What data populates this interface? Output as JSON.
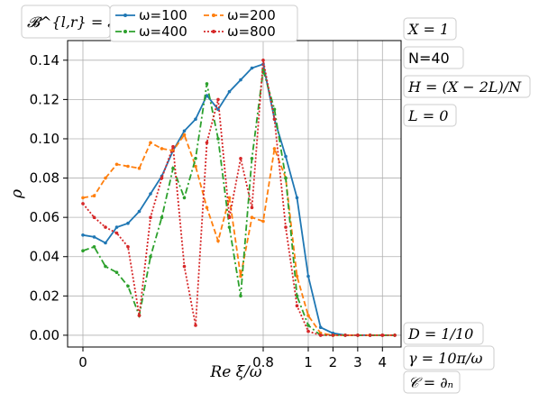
{
  "chart_data": {
    "type": "line",
    "title": "",
    "xlabel": "Re ξ/ω",
    "ylabel": "ρ",
    "ylim": [
      -0.006,
      0.15
    ],
    "grid": true,
    "x_ticks": [
      {
        "value": 0,
        "label": "0"
      },
      {
        "value": 0.8,
        "label": "0.8"
      },
      {
        "value": 1,
        "label": "1"
      },
      {
        "value": 2,
        "label": "2"
      },
      {
        "value": 3,
        "label": "3"
      },
      {
        "value": 4,
        "label": "4"
      }
    ],
    "y_ticks": [
      0.0,
      0.02,
      0.04,
      0.06,
      0.08,
      0.1,
      0.12,
      0.14
    ],
    "y_tick_labels": [
      "0.00",
      "0.02",
      "0.04",
      "0.06",
      "0.08",
      "0.10",
      "0.12",
      "0.14"
    ],
    "legend_title": "𝓑^{l,r} = 𝓑_j^{l,r}",
    "legend_position": "top",
    "series": [
      {
        "name": "ω=100",
        "color": "#1f77b4",
        "dash": "solid",
        "marker": "dot",
        "x": [
          0,
          0.05,
          0.1,
          0.15,
          0.2,
          0.25,
          0.3,
          0.35,
          0.4,
          0.45,
          0.5,
          0.55,
          0.6,
          0.65,
          0.7,
          0.75,
          0.8,
          0.85,
          0.9,
          0.95,
          1.0,
          1.5,
          2.0,
          2.5,
          3.0,
          3.5,
          4.0,
          4.5
        ],
        "values": [
          0.051,
          0.05,
          0.047,
          0.055,
          0.057,
          0.063,
          0.072,
          0.081,
          0.094,
          0.104,
          0.11,
          0.122,
          0.115,
          0.124,
          0.13,
          0.136,
          0.138,
          0.11,
          0.091,
          0.07,
          0.03,
          0.004,
          0.001,
          0.0,
          0.0,
          0.0,
          0.0,
          0.0
        ]
      },
      {
        "name": "ω=200",
        "color": "#ff7f0e",
        "dash": "dashed",
        "marker": "dot",
        "x": [
          0,
          0.05,
          0.1,
          0.15,
          0.2,
          0.25,
          0.3,
          0.35,
          0.4,
          0.45,
          0.5,
          0.55,
          0.6,
          0.65,
          0.7,
          0.75,
          0.8,
          0.85,
          0.9,
          0.95,
          1.0,
          1.5,
          2.0,
          2.5,
          3.0,
          3.5,
          4.0,
          4.5
        ],
        "values": [
          0.07,
          0.071,
          0.08,
          0.087,
          0.086,
          0.085,
          0.098,
          0.095,
          0.094,
          0.102,
          0.086,
          0.065,
          0.048,
          0.07,
          0.03,
          0.06,
          0.058,
          0.095,
          0.08,
          0.03,
          0.01,
          0.001,
          0.0,
          0.0,
          0.0,
          0.0,
          0.0,
          0.0
        ]
      },
      {
        "name": "ω=400",
        "color": "#2ca02c",
        "dash": "dashdot",
        "marker": "dot",
        "x": [
          0,
          0.05,
          0.1,
          0.15,
          0.2,
          0.25,
          0.3,
          0.35,
          0.4,
          0.45,
          0.5,
          0.55,
          0.6,
          0.65,
          0.7,
          0.75,
          0.8,
          0.85,
          0.9,
          0.95,
          1.0,
          1.5,
          2.0,
          2.5,
          3.0,
          3.5,
          4.0,
          4.5
        ],
        "values": [
          0.043,
          0.045,
          0.035,
          0.032,
          0.025,
          0.01,
          0.04,
          0.06,
          0.085,
          0.07,
          0.09,
          0.128,
          0.1,
          0.055,
          0.02,
          0.09,
          0.135,
          0.115,
          0.08,
          0.02,
          0.005,
          0.0,
          0.0,
          0.0,
          0.0,
          0.0,
          0.0,
          0.0
        ]
      },
      {
        "name": "ω=800",
        "color": "#d62728",
        "dash": "dotted",
        "marker": "dot",
        "x": [
          0,
          0.05,
          0.1,
          0.15,
          0.2,
          0.25,
          0.3,
          0.35,
          0.4,
          0.45,
          0.5,
          0.55,
          0.6,
          0.65,
          0.7,
          0.75,
          0.8,
          0.85,
          0.9,
          0.95,
          1.0,
          1.5,
          2.0,
          2.5,
          3.0,
          3.5,
          4.0,
          4.5
        ],
        "values": [
          0.067,
          0.06,
          0.055,
          0.052,
          0.045,
          0.01,
          0.06,
          0.08,
          0.096,
          0.035,
          0.005,
          0.098,
          0.12,
          0.06,
          0.09,
          0.065,
          0.14,
          0.11,
          0.055,
          0.015,
          0.002,
          0.0,
          0.0,
          0.0,
          0.0,
          0.0,
          0.0,
          0.0
        ]
      }
    ]
  },
  "annotations_top": [
    "X = 1",
    "N=40",
    "H = (X − 2L)/N",
    "L = 0"
  ],
  "annotations_bottom": [
    "D = 1/10",
    "γ = 10π/ω",
    "𝒞 = ∂ₙ"
  ]
}
